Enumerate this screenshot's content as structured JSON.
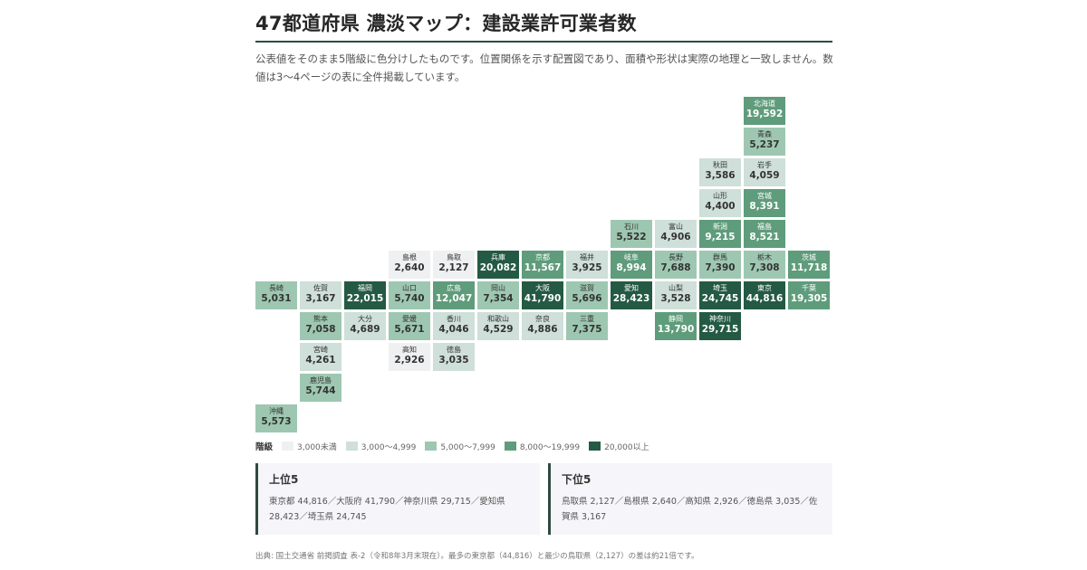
{
  "header": {
    "title": "47都道府県 濃淡マップ：建設業許可業者数",
    "description": "公表値をそのまま5階級に色分けしたものです。位置関係を示す配置図であり、面積や形状は実際の地理と一致しません。数値は3〜4ページの表に全件掲載しています。"
  },
  "colors": {
    "accent": "#2f4a40",
    "class_colors": [
      "#eff0f2",
      "#cfdfd9",
      "#9ec7b1",
      "#5f9c7b",
      "#245a43"
    ],
    "class_text_colors": [
      "#333333",
      "#333333",
      "#333333",
      "#ffffff",
      "#ffffff"
    ]
  },
  "chart_data": {
    "type": "tile-map",
    "value_thresholds": [
      3000,
      5000,
      8000,
      20000
    ],
    "prefectures": [
      {
        "name": "北海道",
        "label": "19,592",
        "value": 19592,
        "col": 11,
        "row": 0
      },
      {
        "name": "青森",
        "label": "5,237",
        "value": 5237,
        "col": 11,
        "row": 1
      },
      {
        "name": "秋田",
        "label": "3,586",
        "value": 3586,
        "col": 10,
        "row": 2
      },
      {
        "name": "岩手",
        "label": "4,059",
        "value": 4059,
        "col": 11,
        "row": 2
      },
      {
        "name": "山形",
        "label": "4,400",
        "value": 4400,
        "col": 10,
        "row": 3
      },
      {
        "name": "宮城",
        "label": "8,391",
        "value": 8391,
        "col": 11,
        "row": 3
      },
      {
        "name": "石川",
        "label": "5,522",
        "value": 5522,
        "col": 8,
        "row": 4
      },
      {
        "name": "富山",
        "label": "4,906",
        "value": 4906,
        "col": 9,
        "row": 4
      },
      {
        "name": "新潟",
        "label": "9,215",
        "value": 9215,
        "col": 10,
        "row": 4
      },
      {
        "name": "福島",
        "label": "8,521",
        "value": 8521,
        "col": 11,
        "row": 4
      },
      {
        "name": "島根",
        "label": "2,640",
        "value": 2640,
        "col": 3,
        "row": 5
      },
      {
        "name": "鳥取",
        "label": "2,127",
        "value": 2127,
        "col": 4,
        "row": 5
      },
      {
        "name": "兵庫",
        "label": "20,082",
        "value": 20082,
        "col": 5,
        "row": 5
      },
      {
        "name": "京都",
        "label": "11,567",
        "value": 11567,
        "col": 6,
        "row": 5
      },
      {
        "name": "福井",
        "label": "3,925",
        "value": 3925,
        "col": 7,
        "row": 5
      },
      {
        "name": "岐阜",
        "label": "8,994",
        "value": 8994,
        "col": 8,
        "row": 5
      },
      {
        "name": "長野",
        "label": "7,688",
        "value": 7688,
        "col": 9,
        "row": 5
      },
      {
        "name": "群馬",
        "label": "7,390",
        "value": 7390,
        "col": 10,
        "row": 5
      },
      {
        "name": "栃木",
        "label": "7,308",
        "value": 7308,
        "col": 11,
        "row": 5
      },
      {
        "name": "茨城",
        "label": "11,718",
        "value": 11718,
        "col": 12,
        "row": 5
      },
      {
        "name": "長崎",
        "label": "5,031",
        "value": 5031,
        "col": 0,
        "row": 6
      },
      {
        "name": "佐賀",
        "label": "3,167",
        "value": 3167,
        "col": 1,
        "row": 6
      },
      {
        "name": "福岡",
        "label": "22,015",
        "value": 22015,
        "col": 2,
        "row": 6
      },
      {
        "name": "山口",
        "label": "5,740",
        "value": 5740,
        "col": 3,
        "row": 6
      },
      {
        "name": "広島",
        "label": "12,047",
        "value": 12047,
        "col": 4,
        "row": 6
      },
      {
        "name": "岡山",
        "label": "7,354",
        "value": 7354,
        "col": 5,
        "row": 6
      },
      {
        "name": "大阪",
        "label": "41,790",
        "value": 41790,
        "col": 6,
        "row": 6
      },
      {
        "name": "滋賀",
        "label": "5,696",
        "value": 5696,
        "col": 7,
        "row": 6
      },
      {
        "name": "愛知",
        "label": "28,423",
        "value": 28423,
        "col": 8,
        "row": 6
      },
      {
        "name": "山梨",
        "label": "3,528",
        "value": 3528,
        "col": 9,
        "row": 6
      },
      {
        "name": "埼玉",
        "label": "24,745",
        "value": 24745,
        "col": 10,
        "row": 6
      },
      {
        "name": "東京",
        "label": "44,816",
        "value": 44816,
        "col": 11,
        "row": 6
      },
      {
        "name": "千葉",
        "label": "19,305",
        "value": 19305,
        "col": 12,
        "row": 6
      },
      {
        "name": "熊本",
        "label": "7,058",
        "value": 7058,
        "col": 1,
        "row": 7
      },
      {
        "name": "大分",
        "label": "4,689",
        "value": 4689,
        "col": 2,
        "row": 7
      },
      {
        "name": "愛媛",
        "label": "5,671",
        "value": 5671,
        "col": 3,
        "row": 7
      },
      {
        "name": "香川",
        "label": "4,046",
        "value": 4046,
        "col": 4,
        "row": 7
      },
      {
        "name": "和歌山",
        "label": "4,529",
        "value": 4529,
        "col": 5,
        "row": 7
      },
      {
        "name": "奈良",
        "label": "4,886",
        "value": 4886,
        "col": 6,
        "row": 7
      },
      {
        "name": "三重",
        "label": "7,375",
        "value": 7375,
        "col": 7,
        "row": 7
      },
      {
        "name": "静岡",
        "label": "13,790",
        "value": 13790,
        "col": 9,
        "row": 7
      },
      {
        "name": "神奈川",
        "label": "29,715",
        "value": 29715,
        "col": 10,
        "row": 7
      },
      {
        "name": "宮崎",
        "label": "4,261",
        "value": 4261,
        "col": 1,
        "row": 8
      },
      {
        "name": "高知",
        "label": "2,926",
        "value": 2926,
        "col": 3,
        "row": 8
      },
      {
        "name": "徳島",
        "label": "3,035",
        "value": 3035,
        "col": 4,
        "row": 8
      },
      {
        "name": "鹿児島",
        "label": "5,744",
        "value": 5744,
        "col": 1,
        "row": 9
      },
      {
        "name": "沖縄",
        "label": "5,573",
        "value": 5573,
        "col": 0,
        "row": 10
      }
    ]
  },
  "legend": {
    "title": "階級",
    "items": [
      "3,000未満",
      "3,000〜4,999",
      "5,000〜7,999",
      "8,000〜19,999",
      "20,000以上"
    ]
  },
  "top5": {
    "title": "上位5",
    "body": "東京都 44,816／大阪府 41,790／神奈川県 29,715／愛知県 28,423／埼玉県 24,745"
  },
  "bottom5": {
    "title": "下位5",
    "body": "鳥取県 2,127／島根県 2,640／高知県 2,926／徳島県 3,035／佐賀県 3,167"
  },
  "source": "出典: 国土交通省 前掲調査 表-2（令和8年3月末現在）。最多の東京都（44,816）と最少の鳥取県（2,127）の差は約21倍です。"
}
